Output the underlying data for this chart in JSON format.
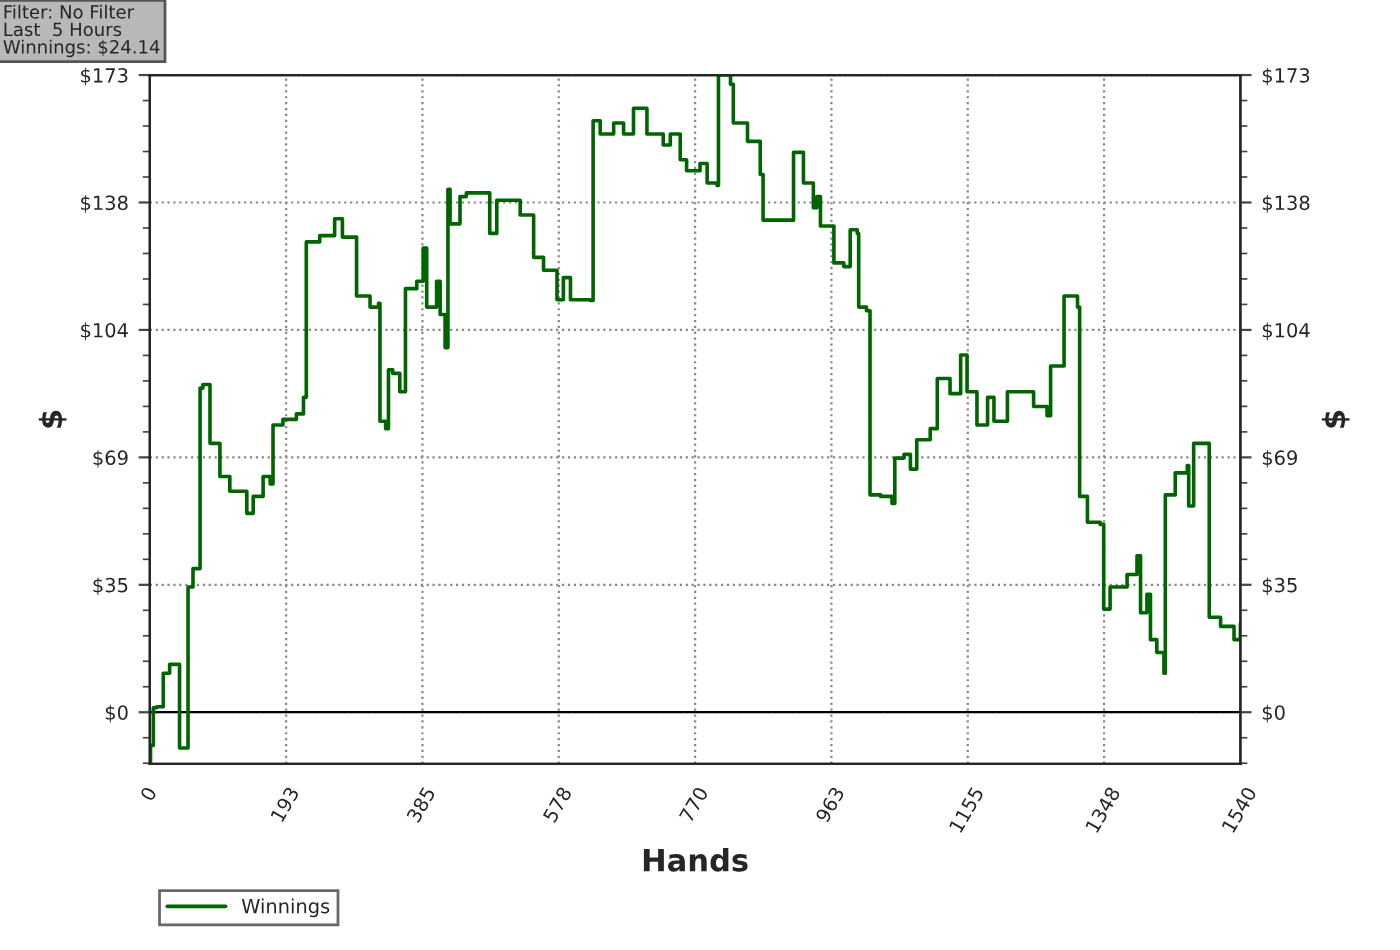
{
  "chart_data": {
    "type": "step",
    "xlabel": "Hands",
    "ylabel": "$",
    "y2label": "$",
    "annotations": [
      "Filter: No Filter\nLast  5 Hours\nWinnings: $24.14"
    ],
    "xlim": [
      0,
      1540
    ],
    "xticks": [
      0,
      {
        "value": 192.5,
        "label": "193"
      },
      {
        "value": 385,
        "label": "385"
      },
      {
        "value": 577.5,
        "label": "578"
      },
      {
        "value": 770,
        "label": "770"
      },
      {
        "value": 962.5,
        "label": "963"
      },
      {
        "value": 1155,
        "label": "1155"
      },
      {
        "value": 1347.5,
        "label": "1348"
      },
      1540
    ],
    "ylim": [
      -14,
      173
    ],
    "yticks": [
      {
        "value": 0,
        "label": "$0"
      },
      {
        "value": 34.6,
        "label": "$35"
      },
      {
        "value": 69.2,
        "label": "$69"
      },
      {
        "value": 103.8,
        "label": "$104"
      },
      {
        "value": 138.4,
        "label": "$138"
      },
      {
        "value": 173,
        "label": "$173"
      }
    ],
    "y2lim": [
      -14,
      173
    ],
    "y2ticks": [
      {
        "value": 0,
        "label": "$0"
      },
      {
        "value": 34.6,
        "label": "$35"
      },
      {
        "value": 69.2,
        "label": "$69"
      },
      {
        "value": 103.8,
        "label": "$104"
      },
      {
        "value": 138.4,
        "label": "$138"
      },
      {
        "value": 173,
        "label": "$173"
      }
    ],
    "grid": true,
    "legend": "bottom left",
    "marker": "none",
    "line_style": "solid",
    "ref_lines": [
      {
        "axis": "y",
        "value": 0,
        "color": "#000000",
        "line_style": "solid"
      }
    ],
    "series": [
      {
        "name": "Winnings",
        "color": "#006400",
        "x": [
          0,
          1,
          5,
          10,
          19,
          28,
          42,
          42,
          52,
          54,
          61,
          66,
          71,
          75,
          85,
          99,
          113,
          137,
          146,
          160,
          170,
          174,
          188,
          207,
          217,
          221,
          240,
          261,
          272,
          287,
          292,
          311,
          323,
          325,
          333,
          337,
          343,
          353,
          361,
          377,
          386,
          391,
          405,
          410,
          417,
          421,
          424,
          438,
          447,
          480,
          490,
          504,
          523,
          542,
          556,
          575,
          584,
          594,
          608,
          622,
          626,
          636,
          655,
          669,
          683,
          702,
          725,
          735,
          749,
          758,
          777,
          787,
          801,
          803,
          820,
          824,
          844,
          862,
          866,
          895,
          909,
          923,
          937,
          942,
          947,
          966,
          980,
          989,
          999,
          1001,
          1012,
          1017,
          1032,
          1048,
          1052,
          1065,
          1074,
          1083,
          1102,
          1112,
          1130,
          1145,
          1154,
          1168,
          1183,
          1192,
          1211,
          1234,
          1248,
          1267,
          1272,
          1286,
          1291,
          1310,
          1313,
          1324,
          1342,
          1347,
          1356,
          1375,
          1380,
          1394,
          1399,
          1408,
          1413,
          1422,
          1432,
          1434,
          1446,
          1448,
          1465,
          1467,
          1474,
          1493,
          1496,
          1512,
          1531,
          1540
        ],
        "values": [
          -14,
          -9,
          1.2,
          1.5,
          10.6,
          13,
          8.7,
          -9.7,
          -9.7,
          34,
          39,
          39,
          88,
          89,
          73,
          64,
          60,
          54,
          58.6,
          64,
          62,
          78,
          79.5,
          81,
          85.5,
          127.7,
          129.4,
          134,
          129,
          129,
          113,
          110,
          111,
          79,
          77,
          93,
          92,
          87,
          115,
          117,
          126,
          110,
          117,
          108,
          99,
          142,
          132.6,
          140,
          141,
          130,
          139,
          139,
          135,
          123.5,
          120,
          112,
          118,
          112,
          112,
          111.8,
          160.6,
          157,
          160,
          157,
          164,
          157,
          154,
          157,
          150,
          147,
          149,
          143.7,
          143,
          173,
          170.5,
          160,
          155,
          146,
          133.6,
          133.6,
          152,
          143.7,
          137,
          140,
          132,
          122,
          121,
          131,
          130,
          110,
          109,
          59,
          58.6,
          56.7,
          69,
          70,
          66,
          74,
          77,
          90.6,
          86.5,
          97,
          87,
          78,
          85.5,
          79,
          87,
          87,
          83,
          80.5,
          94,
          94,
          113,
          110,
          58.6,
          51.6,
          51,
          28,
          34,
          34,
          37.4,
          42.5,
          27,
          32,
          19.7,
          16.2,
          10.6,
          59,
          59,
          65,
          67,
          56,
          73,
          73,
          25.8,
          23.3,
          19.7,
          24
        ]
      }
    ]
  }
}
